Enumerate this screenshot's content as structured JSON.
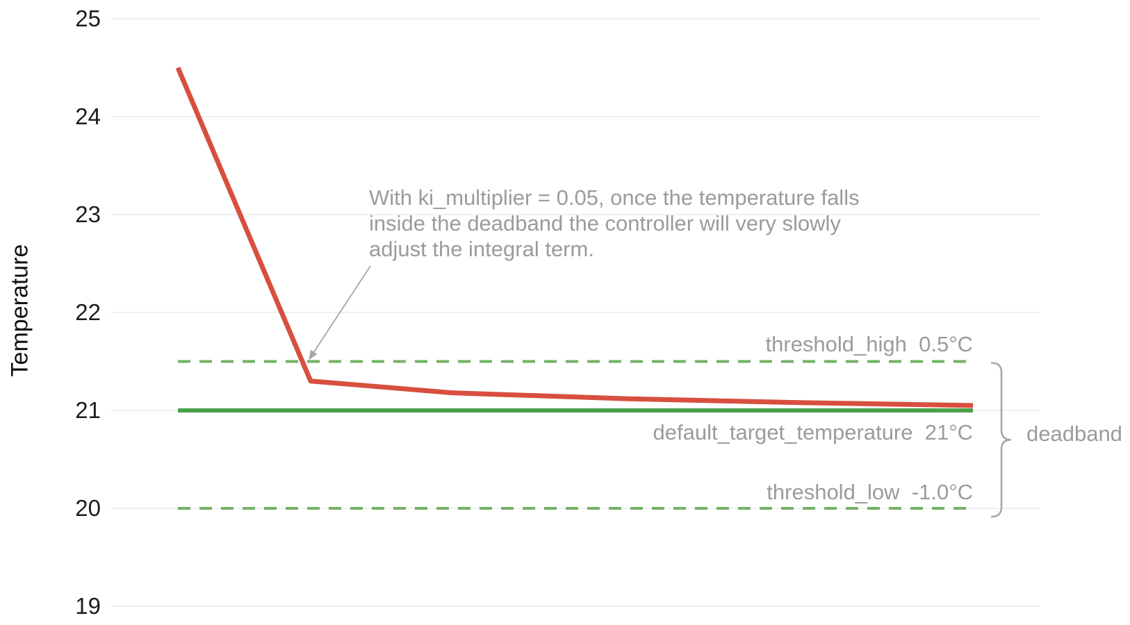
{
  "chart_data": {
    "type": "line",
    "title": "",
    "xlabel": "",
    "ylabel": "Temperature",
    "y_ticks": [
      25,
      24,
      23,
      22,
      21,
      20,
      19
    ],
    "ylim": [
      18.8,
      25.2
    ],
    "grid": "horizontal",
    "series": [
      {
        "name": "temperature",
        "kind": "data-line",
        "color": "#d84f3f",
        "x_frac": [
          0.0,
          0.167,
          0.344,
          0.563,
          0.781,
          1.0
        ],
        "values": [
          24.5,
          21.3,
          21.18,
          21.12,
          21.08,
          21.05
        ]
      },
      {
        "name": "default_target_temperature",
        "kind": "reference-line",
        "style": "solid",
        "color": "#4ba04b",
        "value": 21.0
      },
      {
        "name": "threshold_high",
        "kind": "reference-line",
        "style": "dashed",
        "color": "#74b266",
        "value": 21.5
      },
      {
        "name": "threshold_low",
        "kind": "reference-line",
        "style": "dashed",
        "color": "#74b266",
        "value": 20.0
      }
    ],
    "annotation": "With ki_multiplier = 0.05, once the temperature falls\ninside the deadband the controller will very slowly\nadjust the integral term.",
    "legend_position": "none"
  },
  "labels": {
    "threshold_high": "threshold_high  0.5°C",
    "default_target": "default_target_temperature  21°C",
    "threshold_low": "threshold_low  -1.0°C",
    "deadband": "deadband"
  },
  "colors": {
    "temperature_line": "#d84f3f",
    "target_line": "#4ba04b",
    "threshold_line": "#74b266",
    "gridline": "#ececec",
    "annotation_text": "#9b9b9b",
    "arrow_brace": "#a5a5a5",
    "tick_text": "#1c1c1c"
  }
}
